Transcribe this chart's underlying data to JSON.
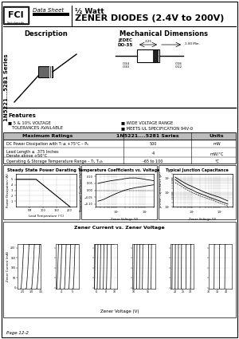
{
  "title_half_watt": "½ Watt",
  "title_main": "ZENER DIODES (2.4V to 200V)",
  "data_sheet_text": "Data Sheet",
  "description_title": "Description",
  "mech_dim_title": "Mechanical Dimensions",
  "series_label": "1N5221...5281 Series",
  "jedec_label": "JEDEC\nDO-35",
  "features_title": "Features",
  "features_left": "5 & 10% VOLTAGE\nTOLERANCES AVAILABLE",
  "features_right_1": "WIDE VOLTAGE RANGE",
  "features_right_2": "MEETS UL SPECIFICATION 94V-0",
  "max_ratings_title": "Maximum Ratings",
  "max_ratings_series": "1N5221....5281 Series",
  "max_ratings_units": "Units",
  "rating1_desc": "DC Power Dissipation with Tₗ ≤ +75°C – Pₙ",
  "rating1_val": "500",
  "rating1_unit": "mW",
  "rating2_desc": "Lead Length ≥ .375 Inches",
  "rating2_desc2": "Derate above +50°C",
  "rating2_val": "4",
  "rating2_unit": "mW/°C",
  "rating3_desc": "Operating & Storage Temperature Range – Tₗ, Tₛₜₕ",
  "rating3_val": "-65 to 100",
  "rating3_unit": "°C",
  "chart1_title": "Steady State Power Derating",
  "chart1_xlabel": "Lead Temperature (°C)",
  "chart1_ylabel": "Power Dissipation (W)",
  "chart2_title": "Temperature Coefficients vs. Voltage",
  "chart2_xlabel": "Zener Voltage (V)",
  "chart2_ylabel": "Temperature Coefficient (%/°C)",
  "chart3_title": "Typical Junction Capacitance",
  "chart3_xlabel": "Zener Voltage (V)",
  "chart3_ylabel": "Junction Capacitance (pF)",
  "chart4_title": "Zener Current vs. Zener Voltage",
  "chart4_xlabel": "Zener Voltage (V)",
  "chart4_ylabel": "Zener Current (mA)",
  "page_label": "Page 12-2",
  "bg_color": "#ffffff"
}
